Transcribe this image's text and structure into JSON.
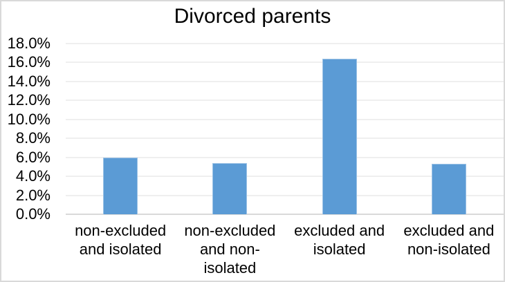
{
  "window": {
    "background": "#ffffff",
    "frame_border_color": "#d9d9d9"
  },
  "chart_data": {
    "type": "bar",
    "title": "Divorced parents",
    "categories": [
      "non-excluded\nand isolated",
      "non-excluded\nand non-\nisolated",
      "excluded and\nisolated",
      "excluded and\nnon-isolated"
    ],
    "values": [
      6.0,
      5.4,
      16.4,
      5.3
    ],
    "value_unit": "%",
    "xlabel": "",
    "ylabel": "",
    "ylim": [
      0,
      18
    ],
    "y_tick_step": 2,
    "y_tick_labels": [
      "0.0%",
      "2.0%",
      "4.0%",
      "6.0%",
      "8.0%",
      "10.0%",
      "12.0%",
      "14.0%",
      "16.0%",
      "18.0%"
    ],
    "grid": "horizontal",
    "legend": "none",
    "colors": {
      "bar_fill": "#5b9bd5",
      "bar_border": "#9cc2e5",
      "gridline": "#efefef",
      "axis_line": "#d9d9d9",
      "text": "#000000"
    }
  }
}
